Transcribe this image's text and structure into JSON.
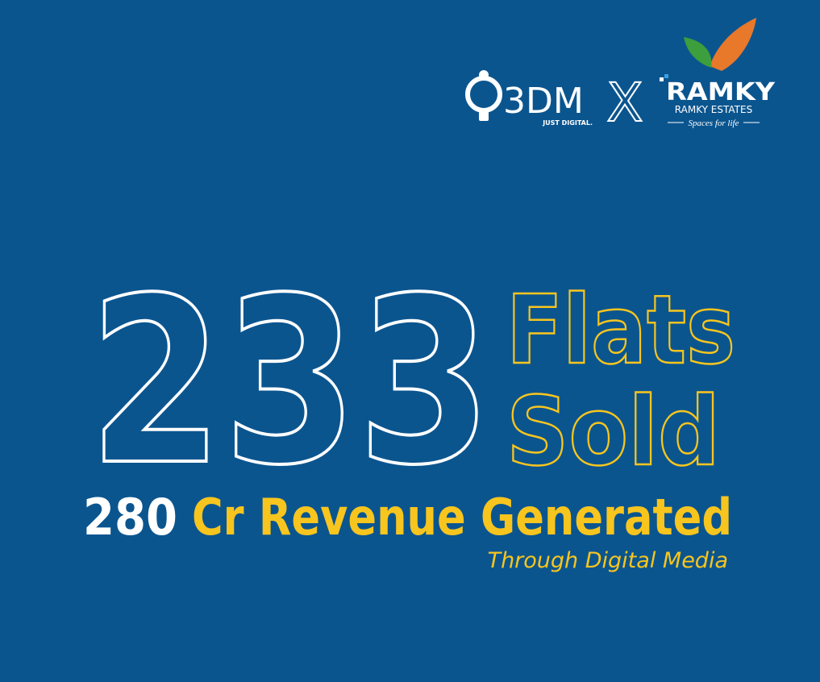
{
  "logos": {
    "agency": {
      "name": "3DM",
      "tagline": "JUST DIGITAL."
    },
    "separator": "X",
    "client": {
      "name": "RAMKY",
      "subtitle": "RAMKY ESTATES",
      "tagline": "Spaces for life"
    }
  },
  "headline": {
    "number": "233",
    "line1": "Flats",
    "line2": "Sold"
  },
  "revenue": {
    "amount": "280",
    "text": "Cr Revenue Generated"
  },
  "footnote": "Through Digital Media"
}
